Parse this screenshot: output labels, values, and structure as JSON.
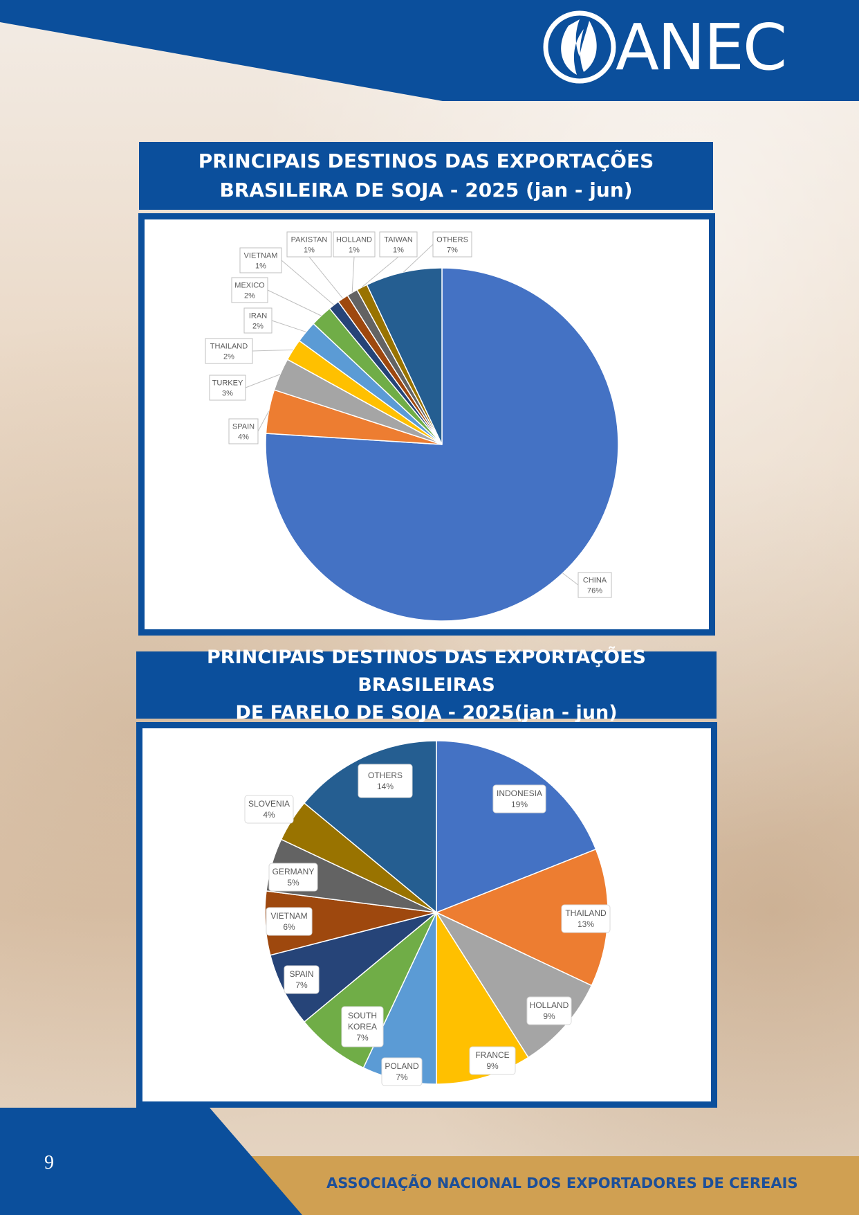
{
  "header": {
    "brand": "ANEC"
  },
  "colors": {
    "brand_blue": "#0b4f9c",
    "gold": "#d0a052",
    "footer_text": "#1d4f98"
  },
  "chart1": {
    "title_lines": [
      "PRINCIPAIS DESTINOS DAS EXPORTAÇÕES",
      "BRASILEIRA DE SOJA - 2025 (jan - jun)"
    ]
  },
  "chart2": {
    "title_lines": [
      "PRINCIPAIS DESTINOS DAS EXPORTAÇÕES BRASILEIRAS",
      "DE FARELO DE SOJA - 2025(jan - jun)"
    ]
  },
  "chart_data": [
    {
      "type": "pie",
      "title": "PRINCIPAIS DESTINOS DAS EXPORTAÇÕES BRASILEIRA DE SOJA - 2025 (jan - jun)",
      "slices": [
        {
          "label": "CHINA",
          "value": 76,
          "pct": "76%",
          "color": "#4472c4"
        },
        {
          "label": "SPAIN",
          "value": 4,
          "pct": "4%",
          "color": "#ed7d31"
        },
        {
          "label": "TURKEY",
          "value": 3,
          "pct": "3%",
          "color": "#a5a5a5"
        },
        {
          "label": "THAILAND",
          "value": 2,
          "pct": "2%",
          "color": "#ffc000"
        },
        {
          "label": "IRAN",
          "value": 2,
          "pct": "2%",
          "color": "#5b9bd5"
        },
        {
          "label": "MEXICO",
          "value": 2,
          "pct": "2%",
          "color": "#70ad47"
        },
        {
          "label": "VIETNAM",
          "value": 1,
          "pct": "1%",
          "color": "#264478"
        },
        {
          "label": "PAKISTAN",
          "value": 1,
          "pct": "1%",
          "color": "#9e480e"
        },
        {
          "label": "HOLLAND",
          "value": 1,
          "pct": "1%",
          "color": "#636363"
        },
        {
          "label": "TAIWAN",
          "value": 1,
          "pct": "1%",
          "color": "#997300"
        },
        {
          "label": "OTHERS",
          "value": 7,
          "pct": "7%",
          "color": "#255e91"
        }
      ]
    },
    {
      "type": "pie",
      "title": "PRINCIPAIS DESTINOS DAS EXPORTAÇÕES BRASILEIRAS DE FARELO DE SOJA - 2025(jan - jun)",
      "slices": [
        {
          "label": "INDONESIA",
          "value": 19,
          "pct": "19%",
          "color": "#4472c4"
        },
        {
          "label": "THAILAND",
          "value": 13,
          "pct": "13%",
          "color": "#ed7d31"
        },
        {
          "label": "HOLLAND",
          "value": 9,
          "pct": "9%",
          "color": "#a5a5a5"
        },
        {
          "label": "FRANCE",
          "value": 9,
          "pct": "9%",
          "color": "#ffc000"
        },
        {
          "label": "POLAND",
          "value": 7,
          "pct": "7%",
          "color": "#5b9bd5"
        },
        {
          "label": "SOUTH KOREA",
          "value": 7,
          "pct": "7%",
          "color": "#70ad47"
        },
        {
          "label": "SPAIN",
          "value": 7,
          "pct": "7%",
          "color": "#264478"
        },
        {
          "label": "VIETNAM",
          "value": 6,
          "pct": "6%",
          "color": "#9e480e"
        },
        {
          "label": "GERMANY",
          "value": 5,
          "pct": "5%",
          "color": "#636363"
        },
        {
          "label": "SLOVENIA",
          "value": 4,
          "pct": "4%",
          "color": "#997300"
        },
        {
          "label": "OTHERS",
          "value": 14,
          "pct": "14%",
          "color": "#255e91"
        }
      ]
    }
  ],
  "footer": {
    "page_number": "9",
    "organization": "ASSOCIAÇÃO NACIONAL DOS EXPORTADORES DE CEREAIS"
  }
}
